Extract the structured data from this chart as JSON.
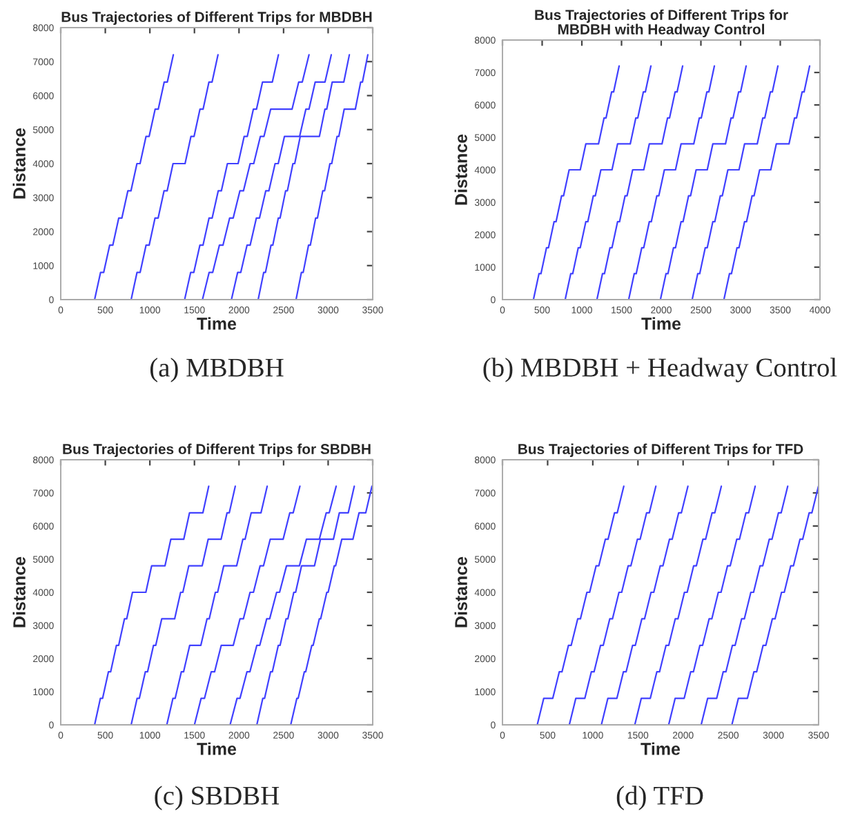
{
  "chart_data": [
    {
      "type": "line",
      "title": "Bus Trajectories of Different Trips for MBDBH",
      "xlabel": "Time",
      "ylabel": "Distance",
      "xlim": [
        0,
        3500
      ],
      "ylim": [
        0,
        8000
      ],
      "xticks": [
        0,
        500,
        1000,
        1500,
        2000,
        2500,
        3000,
        3500
      ],
      "yticks": [
        0,
        1000,
        2000,
        3000,
        4000,
        5000,
        6000,
        7000,
        8000
      ],
      "annotations": [
        "(a) MBDBH"
      ],
      "series": [
        {
          "color": "#4040ff",
          "x": [
            380,
            447,
            482,
            549,
            584,
            651,
            686,
            753,
            788,
            855,
            890,
            957,
            992,
            1059,
            1094,
            1161,
            1196,
            1263
          ],
          "values": [
            0,
            800,
            800,
            1600,
            1600,
            2400,
            2400,
            3200,
            3200,
            4000,
            4000,
            4800,
            4800,
            5600,
            5600,
            6400,
            6400,
            7200
          ]
        },
        {
          "color": "#4040ff",
          "x": [
            790,
            856,
            891,
            957,
            992,
            1058,
            1093,
            1159,
            1194,
            1260,
            1395,
            1461,
            1496,
            1562,
            1597,
            1663,
            1698,
            1764
          ],
          "values": [
            0,
            800,
            800,
            1600,
            1600,
            2400,
            2400,
            3200,
            3200,
            4000,
            4000,
            4800,
            4800,
            5600,
            5600,
            6400,
            6400,
            7200
          ]
        },
        {
          "color": "#4040ff",
          "x": [
            1390,
            1458,
            1493,
            1561,
            1596,
            1664,
            1699,
            1767,
            1802,
            1870,
            1990,
            2058,
            2093,
            2161,
            2196,
            2264,
            2374,
            2442
          ],
          "values": [
            0,
            800,
            800,
            1600,
            1600,
            2400,
            2400,
            3200,
            3200,
            4000,
            4000,
            4800,
            4800,
            5600,
            5600,
            6400,
            6400,
            7200
          ]
        },
        {
          "color": "#4040ff",
          "x": [
            1590,
            1665,
            1705,
            1780,
            1820,
            1895,
            1935,
            2010,
            2050,
            2125,
            2165,
            2240,
            2280,
            2355,
            2595,
            2670,
            2710,
            2785
          ],
          "values": [
            0,
            800,
            800,
            1600,
            1600,
            2400,
            2400,
            3200,
            3200,
            4000,
            4000,
            4800,
            4800,
            5600,
            5600,
            6400,
            6400,
            7200
          ]
        },
        {
          "color": "#4040ff",
          "x": [
            1915,
            1985,
            2020,
            2090,
            2125,
            2195,
            2230,
            2300,
            2335,
            2405,
            2440,
            2510,
            2680,
            2750,
            2785,
            2855,
            2965,
            3035
          ],
          "values": [
            0,
            800,
            800,
            1600,
            1600,
            2400,
            2400,
            3200,
            3200,
            4000,
            4000,
            4800,
            4800,
            5600,
            5600,
            6400,
            6400,
            7200
          ]
        },
        {
          "color": "#4040ff",
          "x": [
            2215,
            2277,
            2297,
            2359,
            2379,
            2441,
            2461,
            2523,
            2543,
            2605,
            2625,
            2687,
            2902,
            2964,
            2984,
            3046,
            3176,
            3238
          ],
          "values": [
            0,
            800,
            800,
            1600,
            1600,
            2400,
            2400,
            3200,
            3200,
            4000,
            4000,
            4800,
            4800,
            5600,
            5600,
            6400,
            6400,
            7200
          ]
        },
        {
          "color": "#4040ff",
          "x": [
            2640,
            2700,
            2720,
            2780,
            2800,
            2860,
            2880,
            2940,
            2960,
            3020,
            3040,
            3100,
            3120,
            3180,
            3305,
            3365,
            3385,
            3445
          ],
          "values": [
            0,
            800,
            800,
            1600,
            1600,
            2400,
            2400,
            3200,
            3200,
            4000,
            4000,
            4800,
            4800,
            5600,
            5600,
            6400,
            6400,
            7200
          ]
        }
      ]
    },
    {
      "type": "line",
      "title": "Bus Trajectories of Different Trips for\nMBDBH with Headway Control",
      "xlabel": "Time",
      "ylabel": "Distance",
      "xlim": [
        0,
        4000
      ],
      "ylim": [
        0,
        8000
      ],
      "xticks": [
        0,
        500,
        1000,
        1500,
        2000,
        2500,
        3000,
        3500,
        4000
      ],
      "yticks": [
        0,
        1000,
        2000,
        3000,
        4000,
        5000,
        6000,
        7000,
        8000
      ],
      "annotations": [
        "(b) MBDBH + Headway Control"
      ],
      "series": [
        {
          "color": "#4040ff",
          "x": [
            390,
            460,
            485,
            555,
            580,
            650,
            675,
            745,
            770,
            840,
            980,
            1050,
            1210,
            1280,
            1305,
            1375,
            1400,
            1470
          ],
          "values": [
            0,
            800,
            800,
            1600,
            1600,
            2400,
            2400,
            3200,
            3200,
            4000,
            4000,
            4800,
            4800,
            5600,
            5600,
            6400,
            6400,
            7200
          ]
        },
        {
          "color": "#4040ff",
          "x": [
            790,
            860,
            885,
            955,
            980,
            1050,
            1075,
            1145,
            1170,
            1240,
            1380,
            1450,
            1610,
            1680,
            1705,
            1775,
            1800,
            1870
          ],
          "values": [
            0,
            800,
            800,
            1600,
            1600,
            2400,
            2400,
            3200,
            3200,
            4000,
            4000,
            4800,
            4800,
            5600,
            5600,
            6400,
            6400,
            7200
          ]
        },
        {
          "color": "#4040ff",
          "x": [
            1190,
            1260,
            1285,
            1355,
            1380,
            1450,
            1475,
            1545,
            1570,
            1640,
            1780,
            1850,
            2010,
            2080,
            2105,
            2175,
            2200,
            2270
          ],
          "values": [
            0,
            800,
            800,
            1600,
            1600,
            2400,
            2400,
            3200,
            3200,
            4000,
            4000,
            4800,
            4800,
            5600,
            5600,
            6400,
            6400,
            7200
          ]
        },
        {
          "color": "#4040ff",
          "x": [
            1590,
            1660,
            1685,
            1755,
            1780,
            1850,
            1875,
            1945,
            1970,
            2040,
            2180,
            2250,
            2410,
            2480,
            2505,
            2575,
            2600,
            2670
          ],
          "values": [
            0,
            800,
            800,
            1600,
            1600,
            2400,
            2400,
            3200,
            3200,
            4000,
            4000,
            4800,
            4800,
            5600,
            5600,
            6400,
            6400,
            7200
          ]
        },
        {
          "color": "#4040ff",
          "x": [
            1990,
            2060,
            2085,
            2155,
            2180,
            2250,
            2275,
            2345,
            2370,
            2440,
            2580,
            2650,
            2810,
            2880,
            2905,
            2975,
            3000,
            3070
          ],
          "values": [
            0,
            800,
            800,
            1600,
            1600,
            2400,
            2400,
            3200,
            3200,
            4000,
            4000,
            4800,
            4800,
            5600,
            5600,
            6400,
            6400,
            7200
          ]
        },
        {
          "color": "#4040ff",
          "x": [
            2390,
            2460,
            2485,
            2555,
            2580,
            2650,
            2675,
            2745,
            2770,
            2840,
            2980,
            3050,
            3210,
            3280,
            3305,
            3375,
            3400,
            3470
          ],
          "values": [
            0,
            800,
            800,
            1600,
            1600,
            2400,
            2400,
            3200,
            3200,
            4000,
            4000,
            4800,
            4800,
            5600,
            5600,
            6400,
            6400,
            7200
          ]
        },
        {
          "color": "#4040ff",
          "x": [
            2790,
            2860,
            2885,
            2955,
            2980,
            3050,
            3075,
            3145,
            3170,
            3240,
            3380,
            3450,
            3610,
            3680,
            3705,
            3775,
            3800,
            3870
          ],
          "values": [
            0,
            800,
            800,
            1600,
            1600,
            2400,
            2400,
            3200,
            3200,
            4000,
            4000,
            4800,
            4800,
            5600,
            5600,
            6400,
            6400,
            7200
          ]
        }
      ]
    },
    {
      "type": "line",
      "title": "Bus Trajectories of Different Trips for SBDBH",
      "xlabel": "Time",
      "ylabel": "Distance",
      "xlim": [
        0,
        3500
      ],
      "ylim": [
        0,
        8000
      ],
      "xticks": [
        0,
        500,
        1000,
        1500,
        2000,
        2500,
        3000,
        3500
      ],
      "yticks": [
        0,
        1000,
        2000,
        3000,
        4000,
        5000,
        6000,
        7000,
        8000
      ],
      "annotations": [
        "(c) SBDBH"
      ],
      "series": [
        {
          "color": "#4040ff",
          "x": [
            380,
            445,
            470,
            535,
            560,
            625,
            650,
            715,
            740,
            805,
            955,
            1020,
            1170,
            1235,
            1380,
            1445,
            1595,
            1660
          ],
          "values": [
            0,
            800,
            800,
            1600,
            1600,
            2400,
            2400,
            3200,
            3200,
            4000,
            4000,
            4800,
            4800,
            5600,
            5600,
            6400,
            6400,
            7200
          ]
        },
        {
          "color": "#4040ff",
          "x": [
            790,
            857,
            882,
            949,
            974,
            1041,
            1066,
            1133,
            1278,
            1345,
            1370,
            1437,
            1587,
            1654,
            1799,
            1866,
            1891,
            1958
          ],
          "values": [
            0,
            800,
            800,
            1600,
            1600,
            2400,
            2400,
            3200,
            3200,
            4000,
            4000,
            4800,
            4800,
            5600,
            5600,
            6400,
            6400,
            7200
          ]
        },
        {
          "color": "#4040ff",
          "x": [
            1190,
            1259,
            1284,
            1353,
            1378,
            1447,
            1572,
            1641,
            1666,
            1735,
            1760,
            1829,
            1974,
            2043,
            2068,
            2137,
            2247,
            2316
          ],
          "values": [
            0,
            800,
            800,
            1600,
            1600,
            2400,
            2400,
            3200,
            3200,
            4000,
            4000,
            4800,
            4800,
            5600,
            5600,
            6400,
            6400,
            7200
          ]
        },
        {
          "color": "#4040ff",
          "x": [
            1500,
            1575,
            1613,
            1688,
            1726,
            1801,
            1936,
            2011,
            2049,
            2124,
            2162,
            2237,
            2275,
            2350,
            2495,
            2570,
            2608,
            2683
          ],
          "values": [
            0,
            800,
            800,
            1600,
            1600,
            2400,
            2400,
            3200,
            3200,
            4000,
            4000,
            4800,
            4800,
            5600,
            5600,
            6400,
            6400,
            7200
          ]
        },
        {
          "color": "#4040ff",
          "x": [
            1900,
            1978,
            2011,
            2089,
            2122,
            2200,
            2233,
            2311,
            2344,
            2422,
            2455,
            2533,
            2678,
            2756,
            2901,
            2979,
            3012,
            3090
          ],
          "values": [
            0,
            800,
            800,
            1600,
            1600,
            2400,
            2400,
            3200,
            3200,
            4000,
            4000,
            4800,
            4800,
            5600,
            5600,
            6400,
            6400,
            7200
          ]
        },
        {
          "color": "#4040ff",
          "x": [
            2200,
            2267,
            2287,
            2354,
            2374,
            2441,
            2461,
            2528,
            2548,
            2615,
            2635,
            2702,
            2847,
            2914,
            3059,
            3126,
            3226,
            3293
          ],
          "values": [
            0,
            800,
            800,
            1600,
            1600,
            2400,
            2400,
            3200,
            3200,
            4000,
            4000,
            4800,
            4800,
            5600,
            5600,
            6400,
            6400,
            7200
          ]
        },
        {
          "color": "#4040ff",
          "x": [
            2580,
            2649,
            2664,
            2733,
            2748,
            2817,
            2832,
            2901,
            2916,
            2985,
            3000,
            3069,
            3084,
            3153,
            3278,
            3347,
            3422,
            3491
          ],
          "values": [
            0,
            800,
            800,
            1600,
            1600,
            2400,
            2400,
            3200,
            3200,
            4000,
            4000,
            4800,
            4800,
            5600,
            5600,
            6400,
            6400,
            7200
          ]
        }
      ]
    },
    {
      "type": "line",
      "title": "Bus Trajectories of Different Trips for TFD",
      "xlabel": "Time",
      "ylabel": "Distance",
      "xlim": [
        0,
        3500
      ],
      "ylim": [
        0,
        8000
      ],
      "xticks": [
        0,
        500,
        1000,
        1500,
        2000,
        2500,
        3000,
        3500
      ],
      "yticks": [
        0,
        1000,
        2000,
        3000,
        4000,
        5000,
        6000,
        7000,
        8000
      ],
      "annotations": [
        "(d) TFD"
      ],
      "series": [
        {
          "color": "#4040ff",
          "x": [
            385,
            457,
            557,
            629,
            659,
            731,
            761,
            833,
            863,
            935,
            965,
            1037,
            1067,
            1139,
            1169,
            1241,
            1271,
            1343
          ],
          "values": [
            0,
            800,
            800,
            1600,
            1600,
            2400,
            2400,
            3200,
            3200,
            4000,
            4000,
            4800,
            4800,
            5600,
            5600,
            6400,
            6400,
            7200
          ]
        },
        {
          "color": "#4040ff",
          "x": [
            740,
            812,
            912,
            984,
            1014,
            1086,
            1116,
            1188,
            1218,
            1290,
            1320,
            1392,
            1422,
            1494,
            1524,
            1596,
            1626,
            1698
          ],
          "values": [
            0,
            800,
            800,
            1600,
            1600,
            2400,
            2400,
            3200,
            3200,
            4000,
            4000,
            4800,
            4800,
            5600,
            5600,
            6400,
            6400,
            7200
          ]
        },
        {
          "color": "#4040ff",
          "x": [
            1095,
            1167,
            1267,
            1339,
            1369,
            1441,
            1471,
            1543,
            1573,
            1645,
            1675,
            1747,
            1777,
            1849,
            1879,
            1951,
            1981,
            2053
          ],
          "values": [
            0,
            800,
            800,
            1600,
            1600,
            2400,
            2400,
            3200,
            3200,
            4000,
            4000,
            4800,
            4800,
            5600,
            5600,
            6400,
            6400,
            7200
          ]
        },
        {
          "color": "#4040ff",
          "x": [
            1465,
            1537,
            1637,
            1709,
            1739,
            1811,
            1841,
            1913,
            1943,
            2015,
            2045,
            2117,
            2147,
            2219,
            2249,
            2321,
            2351,
            2423
          ],
          "values": [
            0,
            800,
            800,
            1600,
            1600,
            2400,
            2400,
            3200,
            3200,
            4000,
            4000,
            4800,
            4800,
            5600,
            5600,
            6400,
            6400,
            7200
          ]
        },
        {
          "color": "#4040ff",
          "x": [
            1840,
            1912,
            2012,
            2084,
            2114,
            2186,
            2216,
            2288,
            2318,
            2390,
            2420,
            2492,
            2522,
            2594,
            2624,
            2696,
            2726,
            2798
          ],
          "values": [
            0,
            800,
            800,
            1600,
            1600,
            2400,
            2400,
            3200,
            3200,
            4000,
            4000,
            4800,
            4800,
            5600,
            5600,
            6400,
            6400,
            7200
          ]
        },
        {
          "color": "#4040ff",
          "x": [
            2200,
            2272,
            2372,
            2444,
            2474,
            2546,
            2576,
            2648,
            2678,
            2750,
            2780,
            2852,
            2882,
            2954,
            2984,
            3056,
            3086,
            3158
          ],
          "values": [
            0,
            800,
            800,
            1600,
            1600,
            2400,
            2400,
            3200,
            3200,
            4000,
            4000,
            4800,
            4800,
            5600,
            5600,
            6400,
            6400,
            7200
          ]
        },
        {
          "color": "#4040ff",
          "x": [
            2540,
            2612,
            2712,
            2784,
            2814,
            2886,
            2916,
            2988,
            3018,
            3090,
            3120,
            3192,
            3222,
            3294,
            3324,
            3396,
            3426,
            3498
          ],
          "values": [
            0,
            800,
            800,
            1600,
            1600,
            2400,
            2400,
            3200,
            3200,
            4000,
            4000,
            4800,
            4800,
            5600,
            5600,
            6400,
            6400,
            7200
          ]
        }
      ]
    }
  ]
}
